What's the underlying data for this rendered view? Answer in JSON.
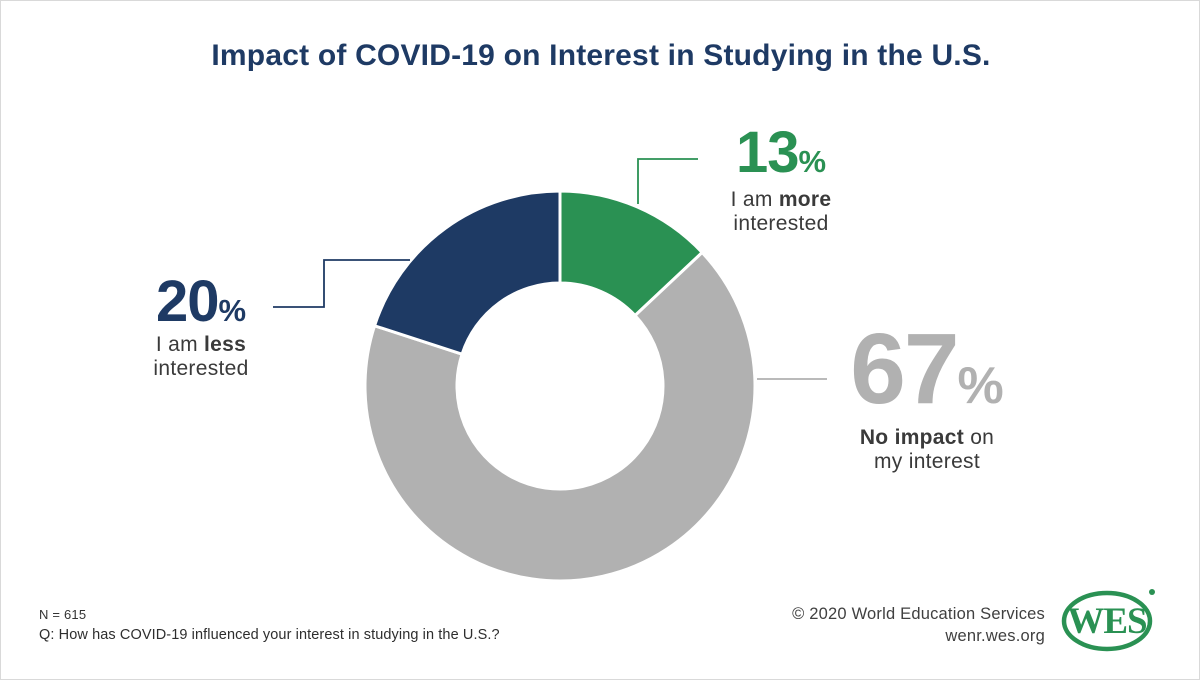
{
  "palette": {
    "navy": "#1e3a64",
    "green": "#2a9153",
    "gray": "#b1b1b1",
    "text": "#3a3a3a",
    "border": "#d9d9d9",
    "white": "#ffffff"
  },
  "title": "Impact of COVID-19 on Interest in Studying in the U.S.",
  "chart_data": {
    "type": "pie",
    "subtype": "donut",
    "title": "Impact of COVID-19 on Interest in Studying in the U.S.",
    "labels": [
      "I am more interested",
      "No impact on my interest",
      "I am less interested"
    ],
    "values": [
      13,
      67,
      20
    ],
    "colors": [
      "#2a9153",
      "#b1b1b1",
      "#1e3a64"
    ],
    "segment_names": [
      "more-interested",
      "no-impact",
      "less-interested"
    ],
    "start_angle_deg": 0,
    "direction": "clockwise",
    "donut_hole_ratio": 0.53,
    "legend_position": "callouts",
    "sample_size": "N = 615"
  },
  "callouts": {
    "more": {
      "number": "13",
      "pct": "%",
      "line1_normal": "I am ",
      "line1_bold": "more",
      "line2": "interested"
    },
    "less": {
      "number": "20",
      "pct": "%",
      "line1_normal": "I am ",
      "line1_bold": "less",
      "line2": "interested"
    },
    "noimpact": {
      "number": "67",
      "pct": "%",
      "line1_bold": "No impact",
      "line1_normal_after": " on",
      "line2": "my interest"
    }
  },
  "footer": {
    "sample": "N = 615",
    "question": "Q: How has COVID-19 influenced your interest in studying in the U.S.?",
    "copyright": "© 2020 World Education Services",
    "site": "wenr.wes.org"
  },
  "logo": {
    "text": "WES",
    "registered_mark": "®"
  }
}
